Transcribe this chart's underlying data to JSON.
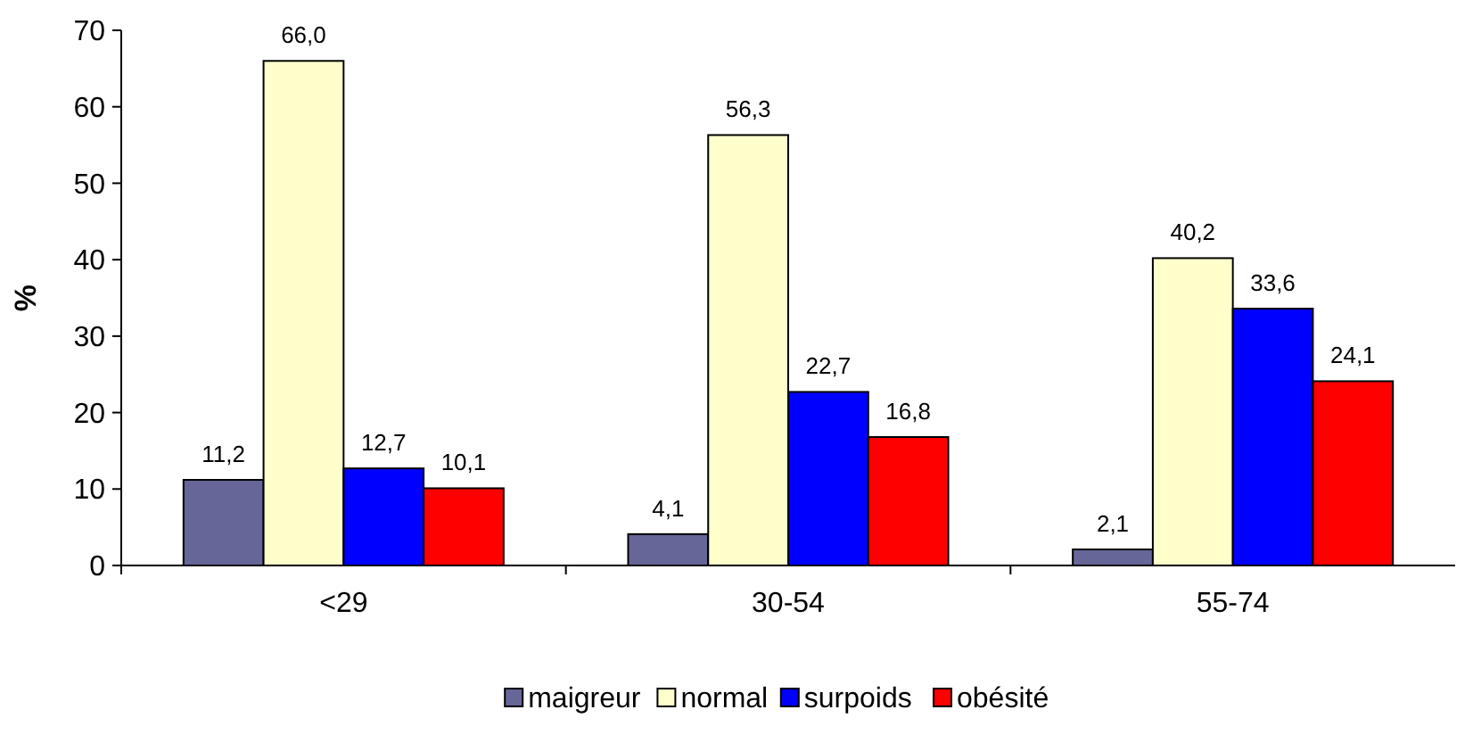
{
  "chart_data": {
    "type": "bar",
    "ylabel": "%",
    "categories": [
      "<29",
      "30-54",
      "55-74"
    ],
    "ylim": [
      0,
      70
    ],
    "yticks": [
      0,
      10,
      20,
      30,
      40,
      50,
      60,
      70
    ],
    "grid": false,
    "legend": "bottom",
    "series": [
      {
        "name": "maigreur",
        "color": "#666699",
        "values": [
          11.2,
          4.1,
          2.1
        ],
        "value_labels": [
          "11,2",
          "4,1",
          "2,1"
        ]
      },
      {
        "name": "normal",
        "color": "#ffffcc",
        "values": [
          66.0,
          56.3,
          40.2
        ],
        "value_labels": [
          "66,0",
          "56,3",
          "40,2"
        ]
      },
      {
        "name": "surpoids",
        "color": "#0000ff",
        "values": [
          12.7,
          22.7,
          33.6
        ],
        "value_labels": [
          "12,7",
          "22,7",
          "33,6"
        ]
      },
      {
        "name": "obésité",
        "color": "#ff0000",
        "values": [
          10.1,
          16.8,
          24.1
        ],
        "value_labels": [
          "10,1",
          "16,8",
          "24,1"
        ]
      }
    ]
  }
}
